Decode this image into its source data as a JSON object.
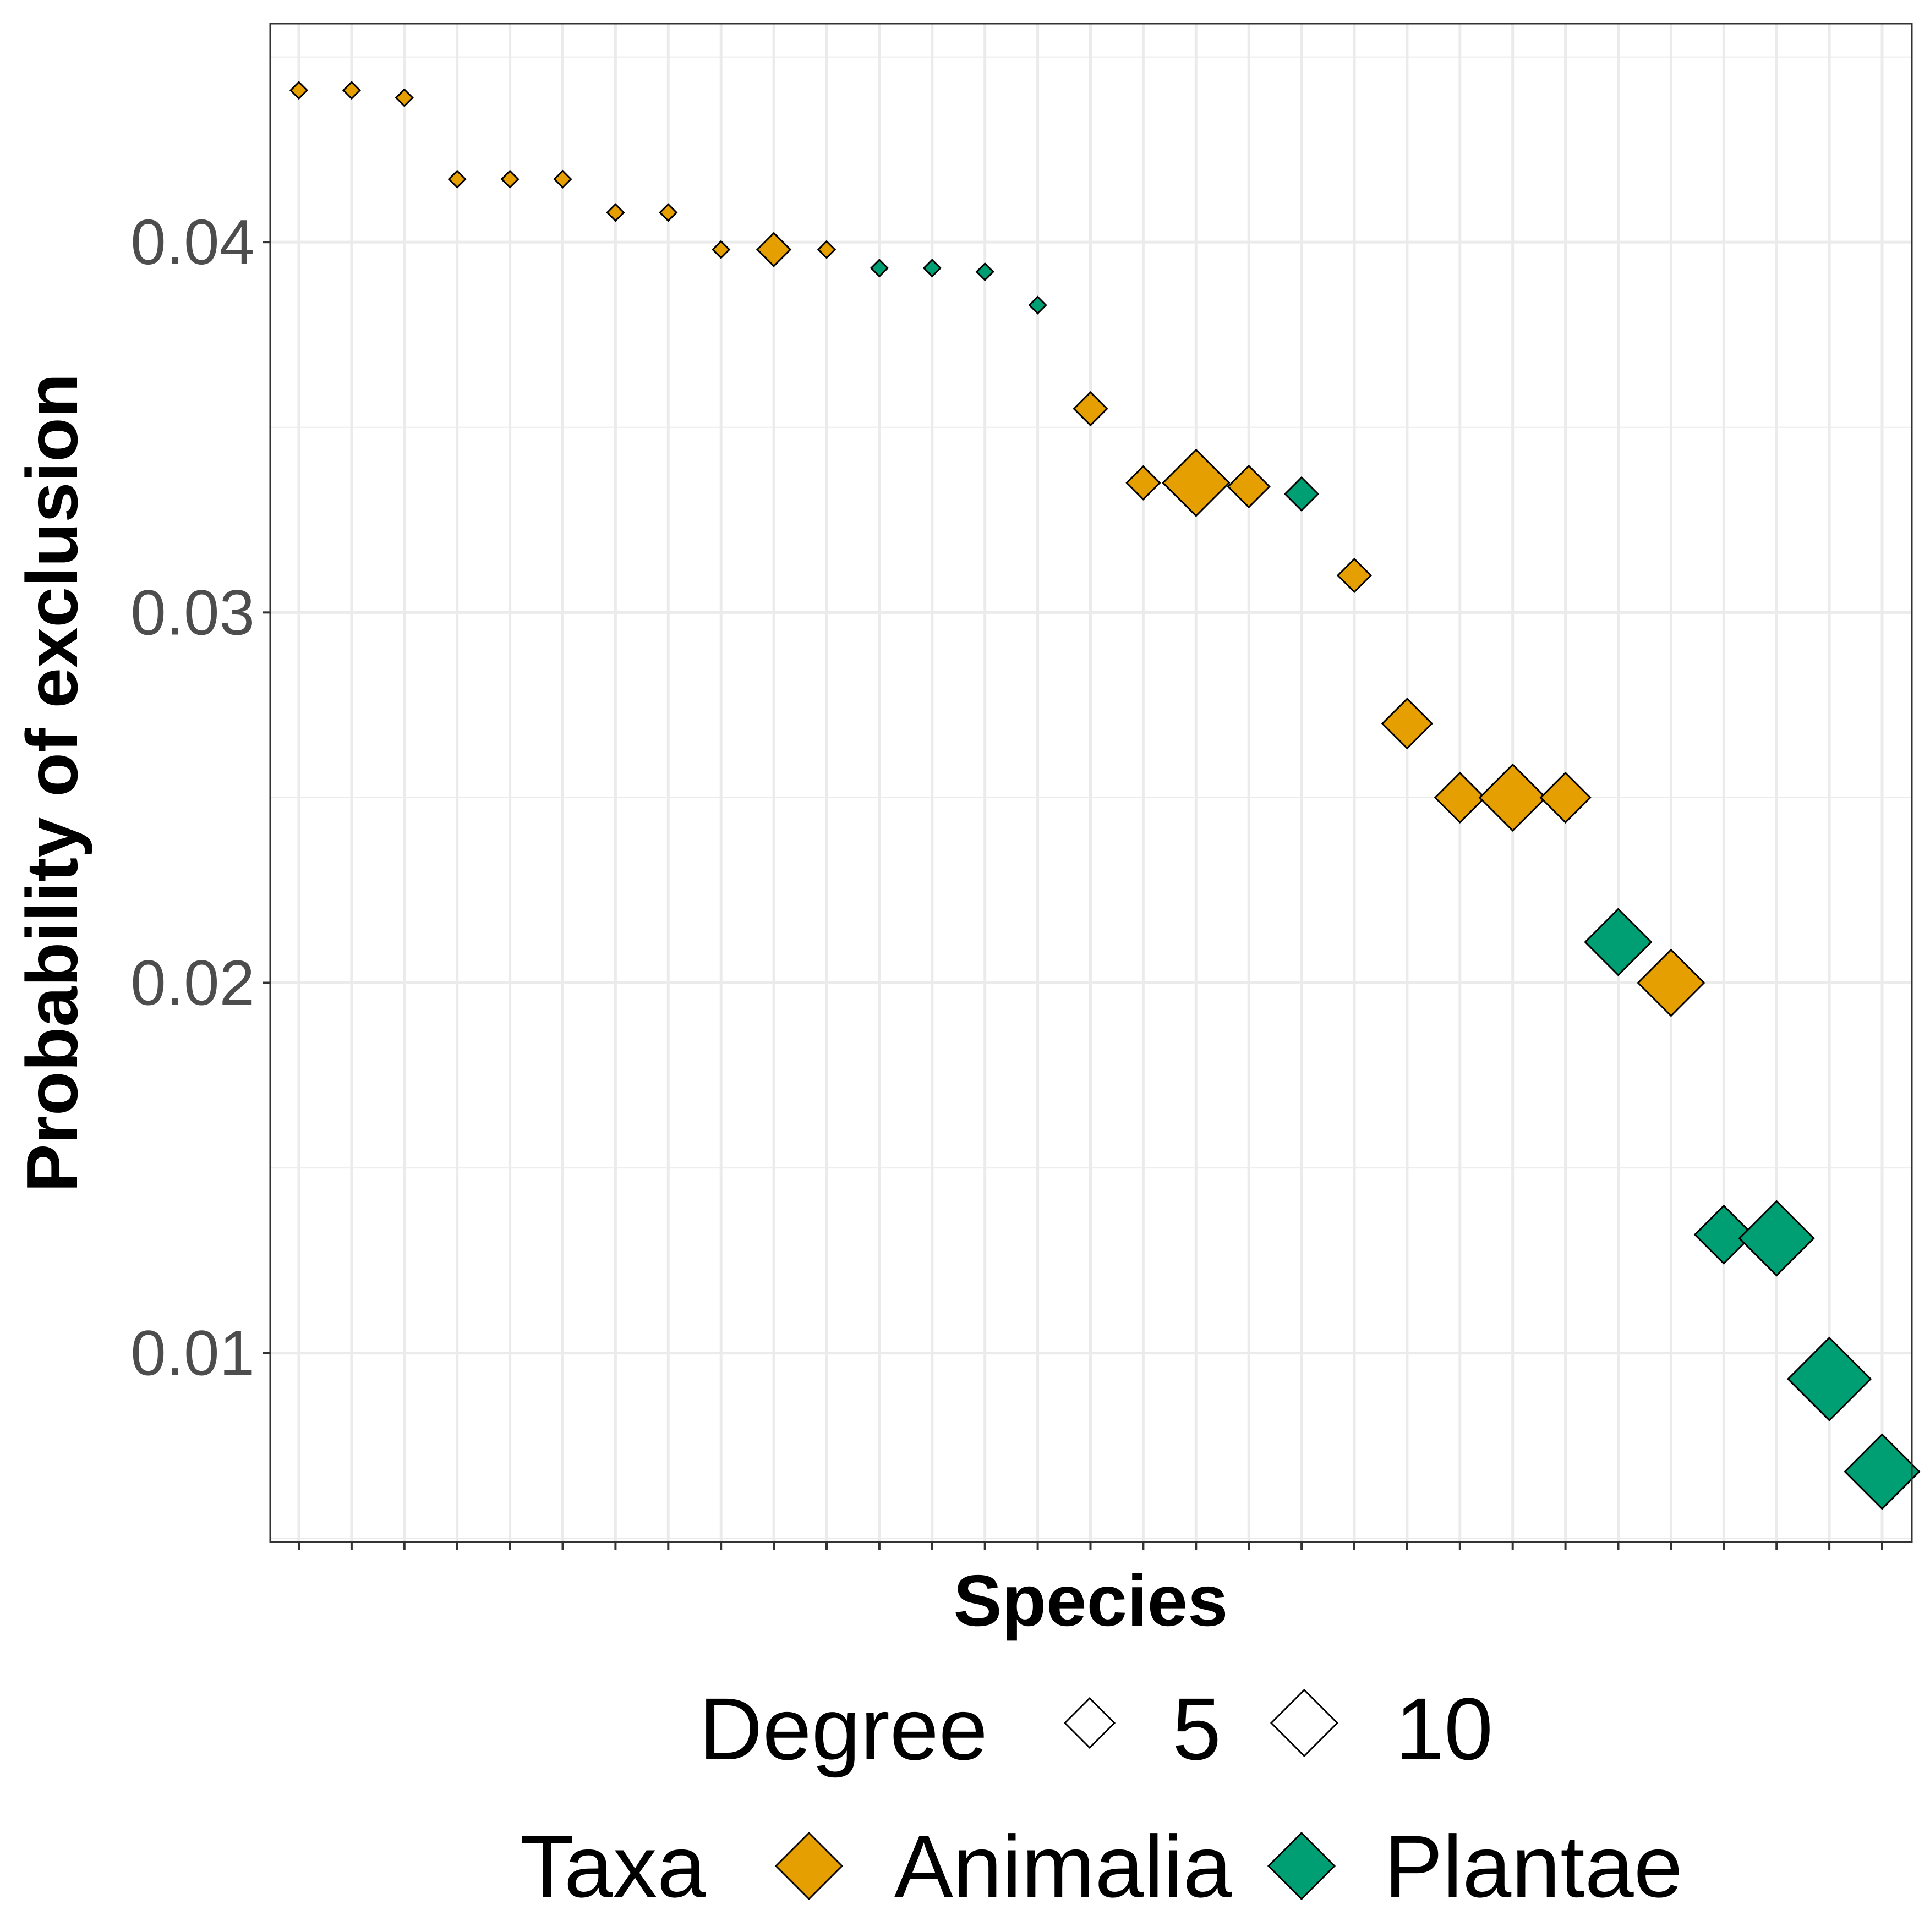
{
  "chart_data": {
    "type": "scatter",
    "title": "",
    "xlabel": "Species",
    "ylabel": "Probability of exclusion",
    "ylim": [
      0.0049,
      0.0459
    ],
    "y_ticks": [
      0.01,
      0.02,
      0.03,
      0.04
    ],
    "y_tick_labels": [
      "0.01",
      "0.02",
      "0.03",
      "0.04"
    ],
    "x_tick_labels_shown": false,
    "grid": true,
    "legend_position": "bottom",
    "colors": {
      "Animalia": "#E69F00",
      "Plantae": "#009E73",
      "outline": "#000000"
    },
    "legend": {
      "size": {
        "title": "Degree",
        "values": [
          5,
          10
        ],
        "labels": [
          "5",
          "10"
        ]
      },
      "fill": {
        "title": "Taxa",
        "labels": [
          "Animalia",
          "Plantae"
        ]
      }
    },
    "points": [
      {
        "x": 1,
        "y": 0.0441,
        "taxa": "Animalia",
        "degree": 2
      },
      {
        "x": 2,
        "y": 0.0441,
        "taxa": "Animalia",
        "degree": 2
      },
      {
        "x": 3,
        "y": 0.0439,
        "taxa": "Animalia",
        "degree": 2
      },
      {
        "x": 4,
        "y": 0.0417,
        "taxa": "Animalia",
        "degree": 2
      },
      {
        "x": 5,
        "y": 0.0417,
        "taxa": "Animalia",
        "degree": 2
      },
      {
        "x": 6,
        "y": 0.0417,
        "taxa": "Animalia",
        "degree": 2
      },
      {
        "x": 7,
        "y": 0.0408,
        "taxa": "Animalia",
        "degree": 2
      },
      {
        "x": 8,
        "y": 0.0408,
        "taxa": "Animalia",
        "degree": 2
      },
      {
        "x": 9,
        "y": 0.0398,
        "taxa": "Animalia",
        "degree": 2
      },
      {
        "x": 10,
        "y": 0.0398,
        "taxa": "Animalia",
        "degree": 4
      },
      {
        "x": 11,
        "y": 0.0398,
        "taxa": "Animalia",
        "degree": 2
      },
      {
        "x": 12,
        "y": 0.0393,
        "taxa": "Plantae",
        "degree": 2
      },
      {
        "x": 13,
        "y": 0.0393,
        "taxa": "Plantae",
        "degree": 2
      },
      {
        "x": 14,
        "y": 0.0392,
        "taxa": "Plantae",
        "degree": 2
      },
      {
        "x": 15,
        "y": 0.0383,
        "taxa": "Plantae",
        "degree": 2
      },
      {
        "x": 16,
        "y": 0.0355,
        "taxa": "Animalia",
        "degree": 4
      },
      {
        "x": 17,
        "y": 0.0335,
        "taxa": "Animalia",
        "degree": 4
      },
      {
        "x": 18,
        "y": 0.0335,
        "taxa": "Animalia",
        "degree": 8
      },
      {
        "x": 19,
        "y": 0.0334,
        "taxa": "Animalia",
        "degree": 5
      },
      {
        "x": 20,
        "y": 0.0332,
        "taxa": "Plantae",
        "degree": 4
      },
      {
        "x": 21,
        "y": 0.031,
        "taxa": "Animalia",
        "degree": 4
      },
      {
        "x": 22,
        "y": 0.027,
        "taxa": "Animalia",
        "degree": 6
      },
      {
        "x": 23,
        "y": 0.025,
        "taxa": "Animalia",
        "degree": 6
      },
      {
        "x": 24,
        "y": 0.025,
        "taxa": "Animalia",
        "degree": 8
      },
      {
        "x": 25,
        "y": 0.025,
        "taxa": "Animalia",
        "degree": 6
      },
      {
        "x": 26,
        "y": 0.0211,
        "taxa": "Plantae",
        "degree": 8
      },
      {
        "x": 27,
        "y": 0.02,
        "taxa": "Animalia",
        "degree": 8
      },
      {
        "x": 28,
        "y": 0.0132,
        "taxa": "Plantae",
        "degree": 7
      },
      {
        "x": 29,
        "y": 0.0131,
        "taxa": "Plantae",
        "degree": 9
      },
      {
        "x": 30,
        "y": 0.0093,
        "taxa": "Plantae",
        "degree": 10
      },
      {
        "x": 31,
        "y": 0.0068,
        "taxa": "Plantae",
        "degree": 9
      }
    ]
  }
}
